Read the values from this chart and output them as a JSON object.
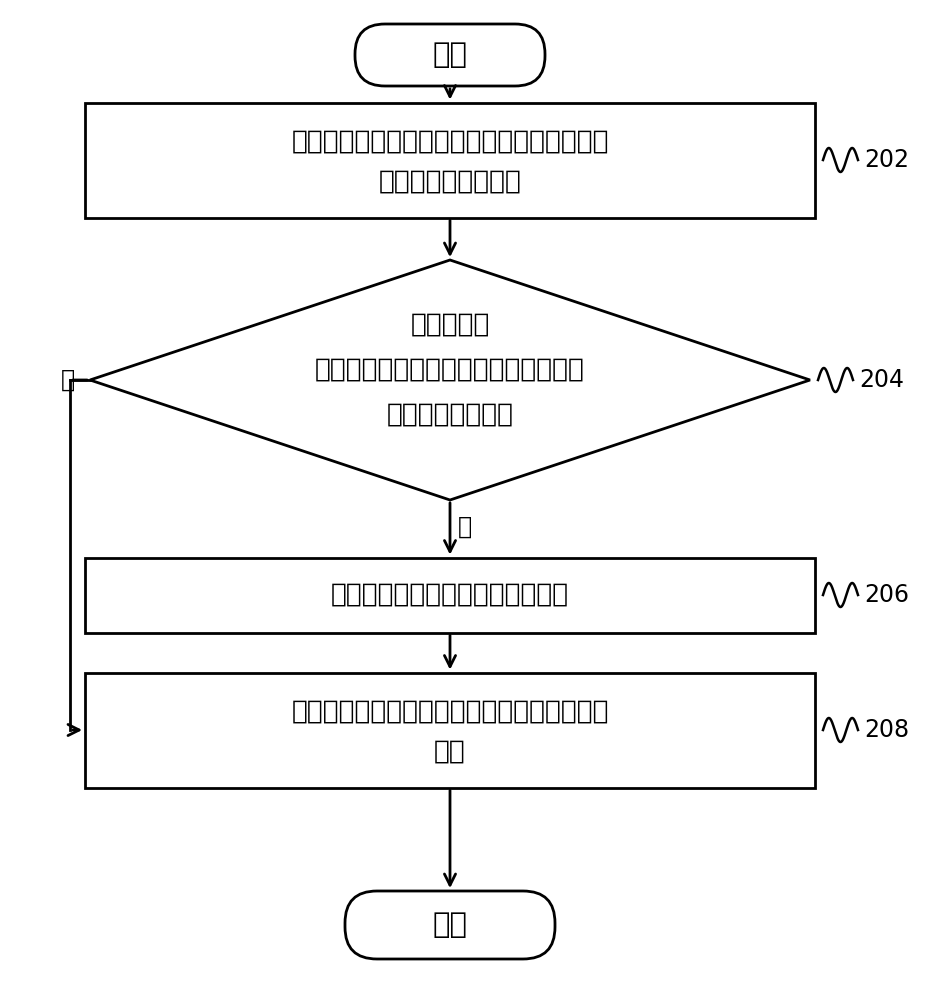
{
  "bg_color": "#ffffff",
  "line_color": "#000000",
  "text_color": "#000000",
  "fig_width": 9.34,
  "fig_height": 10.0,
  "start_label": "开始",
  "end_label": "结束",
  "box202_line1": "若在锁屏状态下检测到触发解锁按键，则启动",
  "box202_line2": "摄像头拍摄当前图像",
  "box202_label": "202",
  "diamond204_line1": "在拍摄当前",
  "diamond204_line2": "图像的同时判断是否预存储有与当前图",
  "diamond204_line3": "像匹配的目标图像",
  "diamond204_label": "204",
  "box206_text": "确定与目标图像对应的模式或界面",
  "box206_label": "206",
  "box208_line1": "进行解锁，并进入到与目标图像对应的模式或",
  "box208_line2": "界面",
  "box208_label": "208",
  "yes_label": "是",
  "no_label": "否",
  "font_size_zh": 19,
  "font_size_label": 17,
  "font_size_yesno": 17
}
